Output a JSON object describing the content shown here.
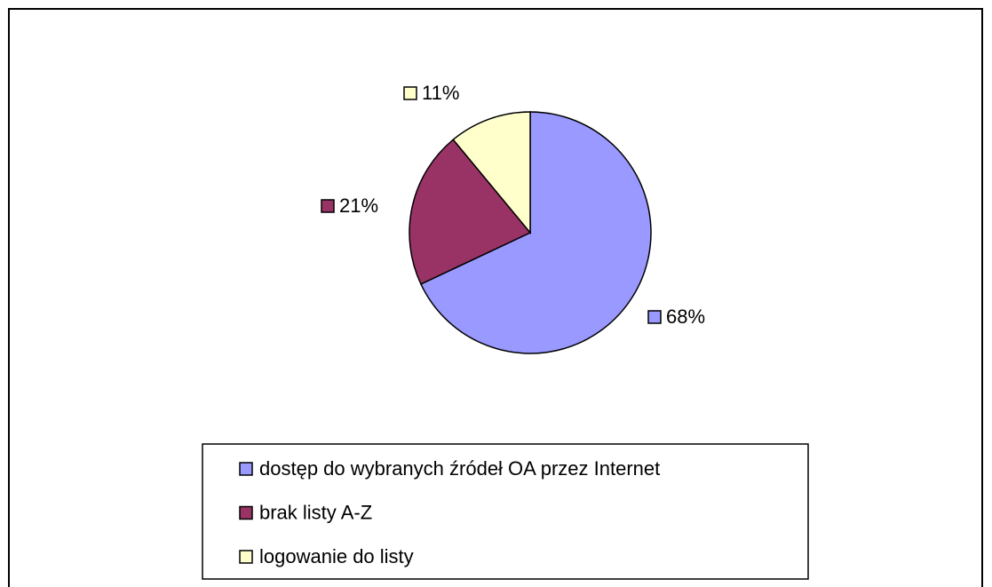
{
  "chart_data": {
    "type": "pie",
    "categories": [
      "dostęp do wybranych źródeł OA przez Internet",
      "brak listy A-Z",
      "logowanie do listy"
    ],
    "values": [
      68,
      21,
      11
    ],
    "value_labels": [
      "68%",
      "21%",
      "11%"
    ],
    "colors": [
      "#9999ff",
      "#993366",
      "#ffffcc"
    ],
    "legend": "bottom"
  }
}
